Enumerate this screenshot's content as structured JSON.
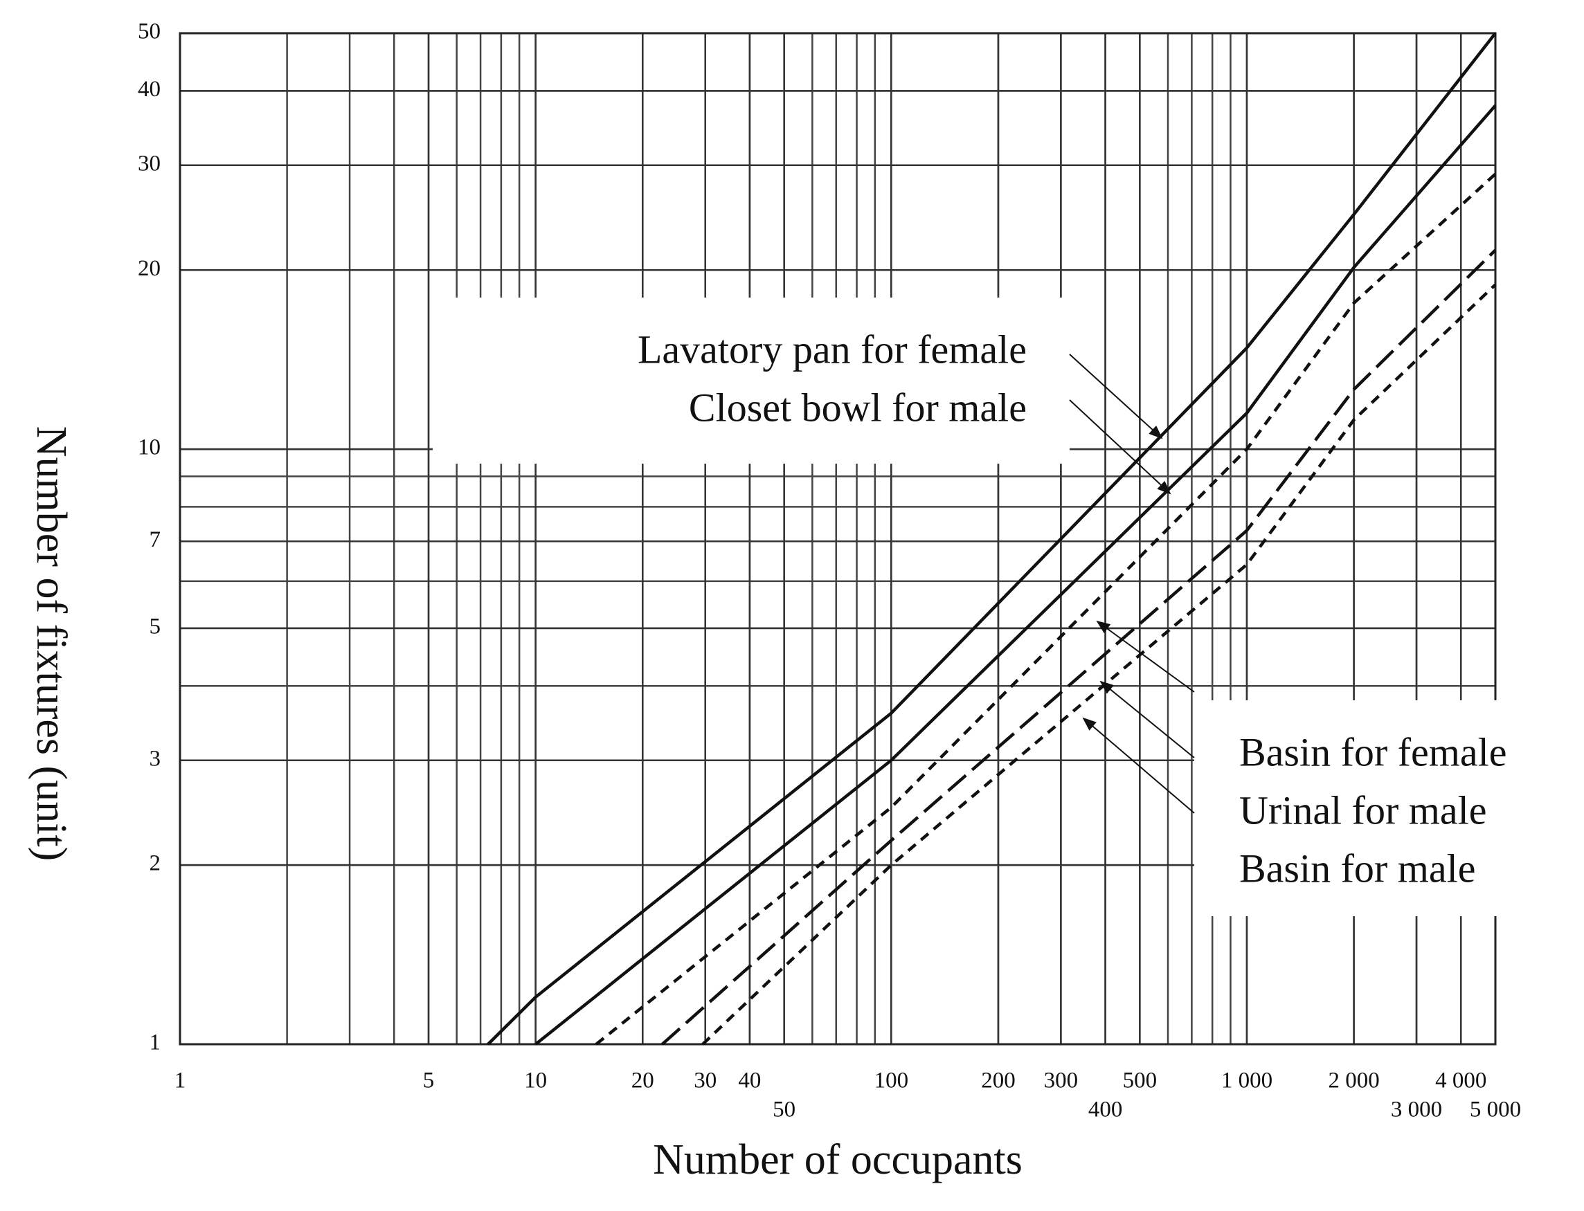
{
  "chart_data": {
    "type": "line",
    "xlabel": "Number of occupants",
    "ylabel": "Number of fixtures (unit)",
    "log_x": true,
    "log_y": true,
    "grid": true,
    "minor_grid": true,
    "xlim": [
      1,
      5000
    ],
    "ylim": [
      1,
      50
    ],
    "xticks": [
      1,
      5,
      10,
      20,
      30,
      40,
      50,
      100,
      200,
      300,
      400,
      500,
      {
        "value": 1000,
        "label": "1 000"
      },
      {
        "value": 2000,
        "label": "2 000"
      },
      {
        "value": 3000,
        "label": "3 000"
      },
      {
        "value": 4000,
        "label": "4 000"
      },
      {
        "value": 5000,
        "label": "5 000"
      }
    ],
    "yticks": [
      1,
      2,
      3,
      5,
      7,
      10,
      20,
      30,
      40,
      50
    ],
    "annotations": [
      {
        "texts": [
          "Lavatory pan for female",
          "Closet bowl for male"
        ]
      },
      {
        "texts": [
          "Basin for female",
          "Urinal for male",
          "Basin for male"
        ]
      }
    ],
    "series": [
      {
        "name": "Lavatory pan for female",
        "color": "#111111",
        "dash": "solid",
        "x": [
          7.35,
          10,
          100,
          1000,
          2000,
          5000
        ],
        "values": [
          1,
          1.2,
          3.6,
          14.8,
          24.8,
          50
        ]
      },
      {
        "name": "Closet bowl for male",
        "color": "#111111",
        "dash": "solid",
        "x": [
          10,
          100,
          1000,
          2000,
          5000
        ],
        "values": [
          1,
          3.0,
          11.5,
          20.2,
          37.8
        ]
      },
      {
        "name": "Basin for female",
        "color": "#111111",
        "dash": "short",
        "x": [
          14.8,
          100,
          1000,
          2000,
          5000
        ],
        "values": [
          1,
          2.5,
          10,
          17.6,
          29
        ]
      },
      {
        "name": "Urinal for male",
        "color": "#111111",
        "dash": "long",
        "x": [
          22.7,
          100,
          1000,
          2000,
          5000
        ],
        "values": [
          1,
          2.2,
          7.3,
          12.6,
          21.6
        ]
      },
      {
        "name": "Basin for male",
        "color": "#111111",
        "dash": "short",
        "x": [
          29.5,
          100,
          1000,
          2000,
          5000
        ],
        "values": [
          1,
          2.0,
          6.4,
          11.2,
          18.9
        ]
      }
    ]
  }
}
